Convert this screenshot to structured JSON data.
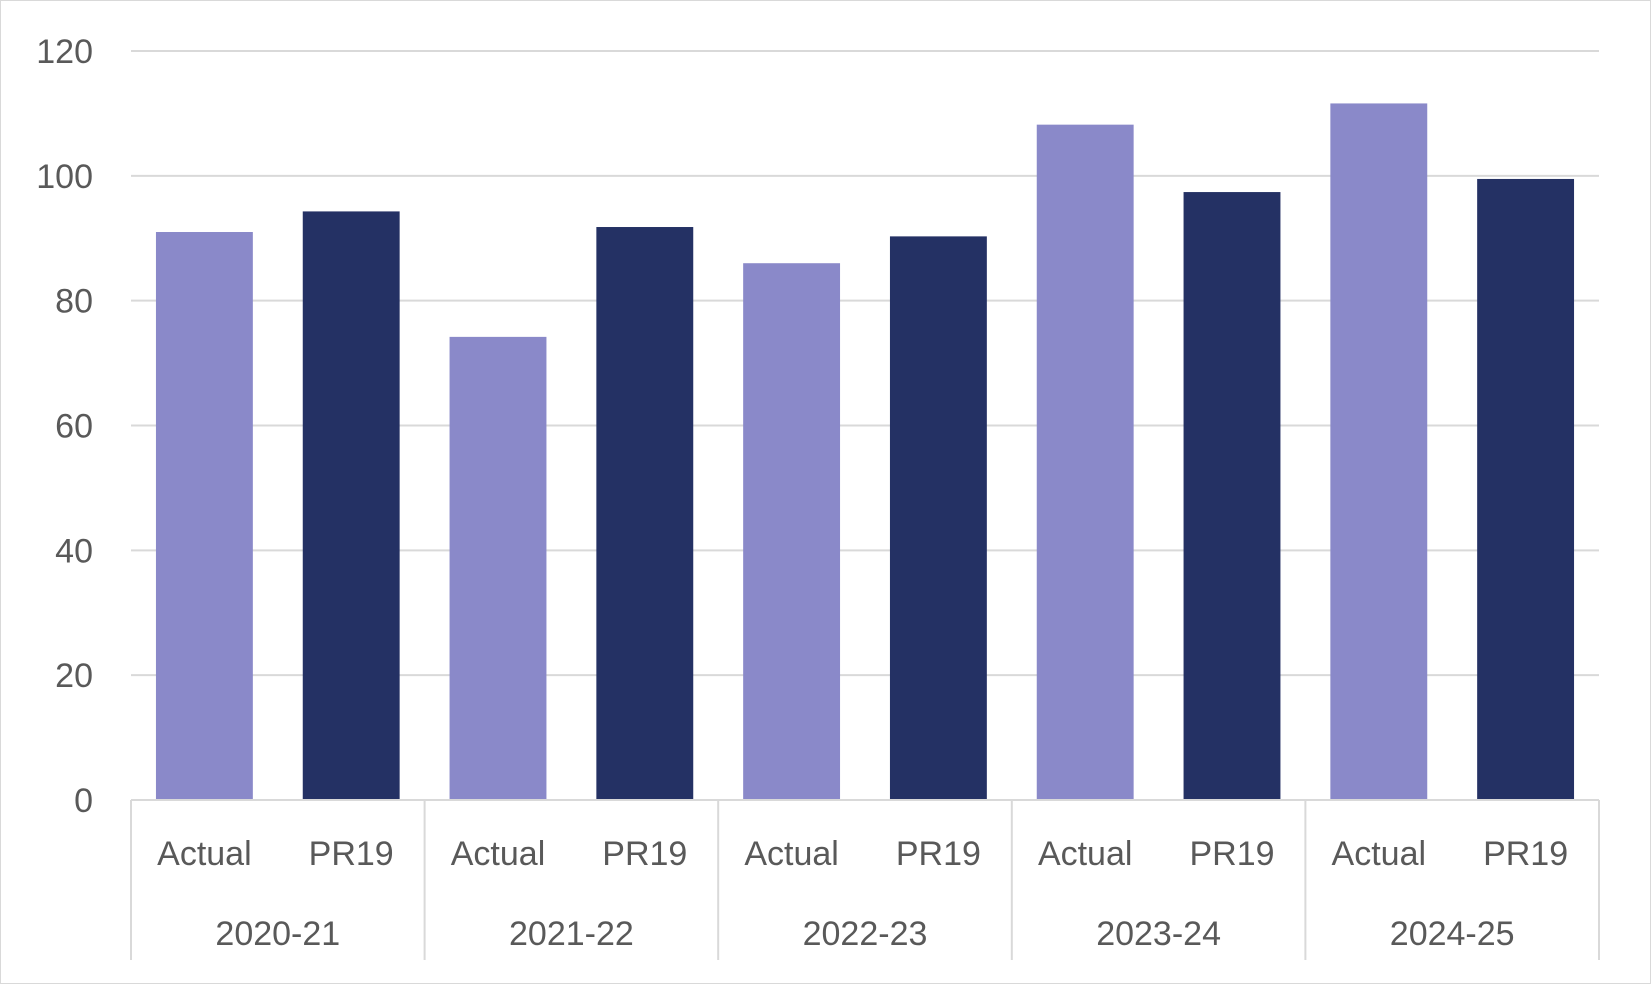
{
  "chart_data": {
    "type": "bar",
    "groups": [
      "2020-21",
      "2021-22",
      "2022-23",
      "2023-24",
      "2024-25"
    ],
    "categories": [
      "Actual",
      "PR19"
    ],
    "bars": [
      {
        "group": "2020-21",
        "category": "Actual",
        "value": 91.0
      },
      {
        "group": "2020-21",
        "category": "PR19",
        "value": 94.3
      },
      {
        "group": "2021-22",
        "category": "Actual",
        "value": 74.2
      },
      {
        "group": "2021-22",
        "category": "PR19",
        "value": 91.8
      },
      {
        "group": "2022-23",
        "category": "Actual",
        "value": 86.0
      },
      {
        "group": "2022-23",
        "category": "PR19",
        "value": 90.3
      },
      {
        "group": "2023-24",
        "category": "Actual",
        "value": 108.2
      },
      {
        "group": "2023-24",
        "category": "PR19",
        "value": 97.4
      },
      {
        "group": "2024-25",
        "category": "Actual",
        "value": 111.6
      },
      {
        "group": "2024-25",
        "category": "PR19",
        "value": 99.5
      }
    ],
    "ylim": [
      0,
      120
    ],
    "yticks": [
      0,
      20,
      40,
      60,
      80,
      100,
      120
    ],
    "grid": true,
    "legend": "none",
    "title": "",
    "xlabel": "",
    "ylabel": "",
    "colors": {
      "Actual": "#8a89c9",
      "PR19": "#243164",
      "grid": "#d9d9d9",
      "text": "#595959"
    }
  }
}
